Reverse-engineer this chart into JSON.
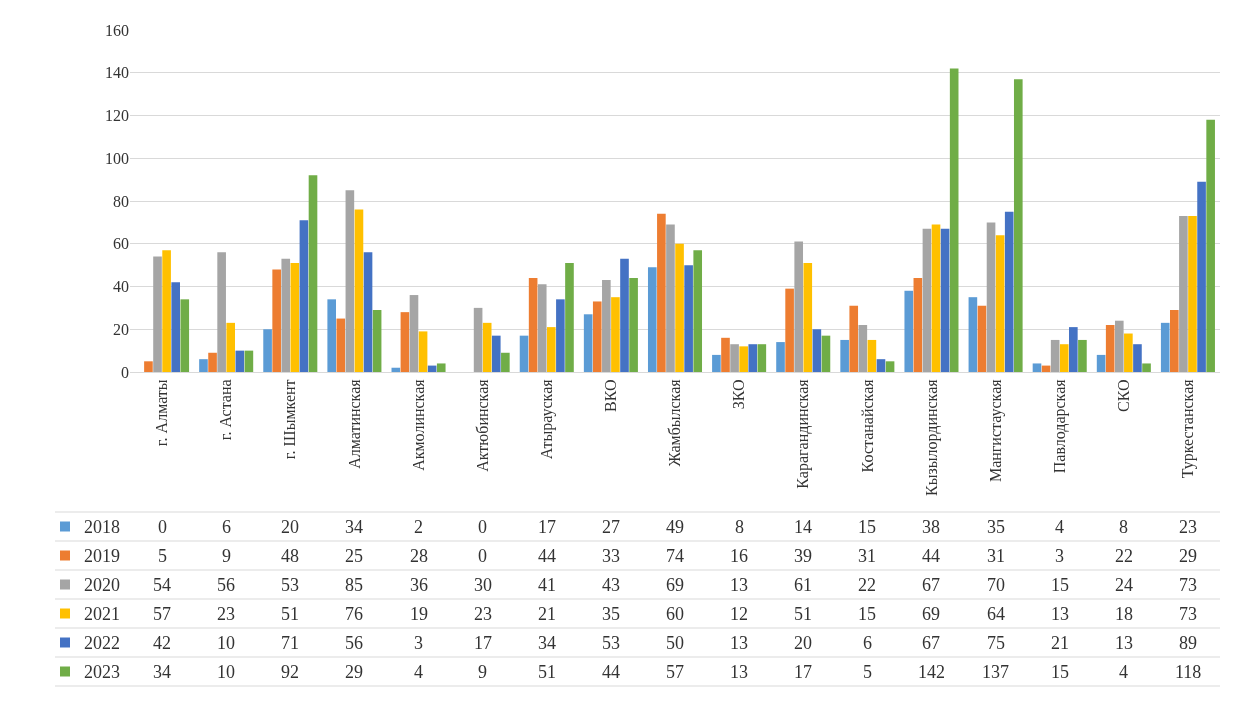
{
  "chart_data": {
    "type": "bar",
    "categories": [
      "г. Алматы",
      "г. Астана",
      "г. Шымкент",
      "Алматинская",
      "Акмолинская",
      "Актюбинская",
      "Атырауская",
      "ВКО",
      "Жамбылская",
      "ЗКО",
      "Карагандинская",
      "Костанайская",
      "Кызылординская",
      "Мангистауская",
      "Павлодарская",
      "СКО",
      "Туркестанская"
    ],
    "series": [
      {
        "name": "2018",
        "color": "#5b9bd5",
        "values": [
          0,
          6,
          20,
          34,
          2,
          0,
          17,
          27,
          49,
          8,
          14,
          15,
          38,
          35,
          4,
          8,
          23
        ]
      },
      {
        "name": "2019",
        "color": "#ed7d31",
        "values": [
          5,
          9,
          48,
          25,
          28,
          0,
          44,
          33,
          74,
          16,
          39,
          31,
          44,
          31,
          3,
          22,
          29
        ]
      },
      {
        "name": "2020",
        "color": "#a5a5a5",
        "values": [
          54,
          56,
          53,
          85,
          36,
          30,
          41,
          43,
          69,
          13,
          61,
          22,
          67,
          70,
          15,
          24,
          73
        ]
      },
      {
        "name": "2021",
        "color": "#ffc000",
        "values": [
          57,
          23,
          51,
          76,
          19,
          23,
          21,
          35,
          60,
          12,
          51,
          15,
          69,
          64,
          13,
          18,
          73
        ]
      },
      {
        "name": "2022",
        "color": "#4472c4",
        "values": [
          42,
          10,
          71,
          56,
          3,
          17,
          34,
          53,
          50,
          13,
          20,
          6,
          67,
          75,
          21,
          13,
          89
        ]
      },
      {
        "name": "2023",
        "color": "#70ad47",
        "values": [
          34,
          10,
          92,
          29,
          4,
          9,
          51,
          44,
          57,
          13,
          17,
          5,
          142,
          137,
          15,
          4,
          118
        ]
      }
    ],
    "ylim": [
      0,
      160
    ],
    "yticks": [
      0,
      20,
      40,
      60,
      80,
      100,
      120,
      140,
      160
    ],
    "grid": "y",
    "data_labels": true,
    "legend": "bottom"
  }
}
